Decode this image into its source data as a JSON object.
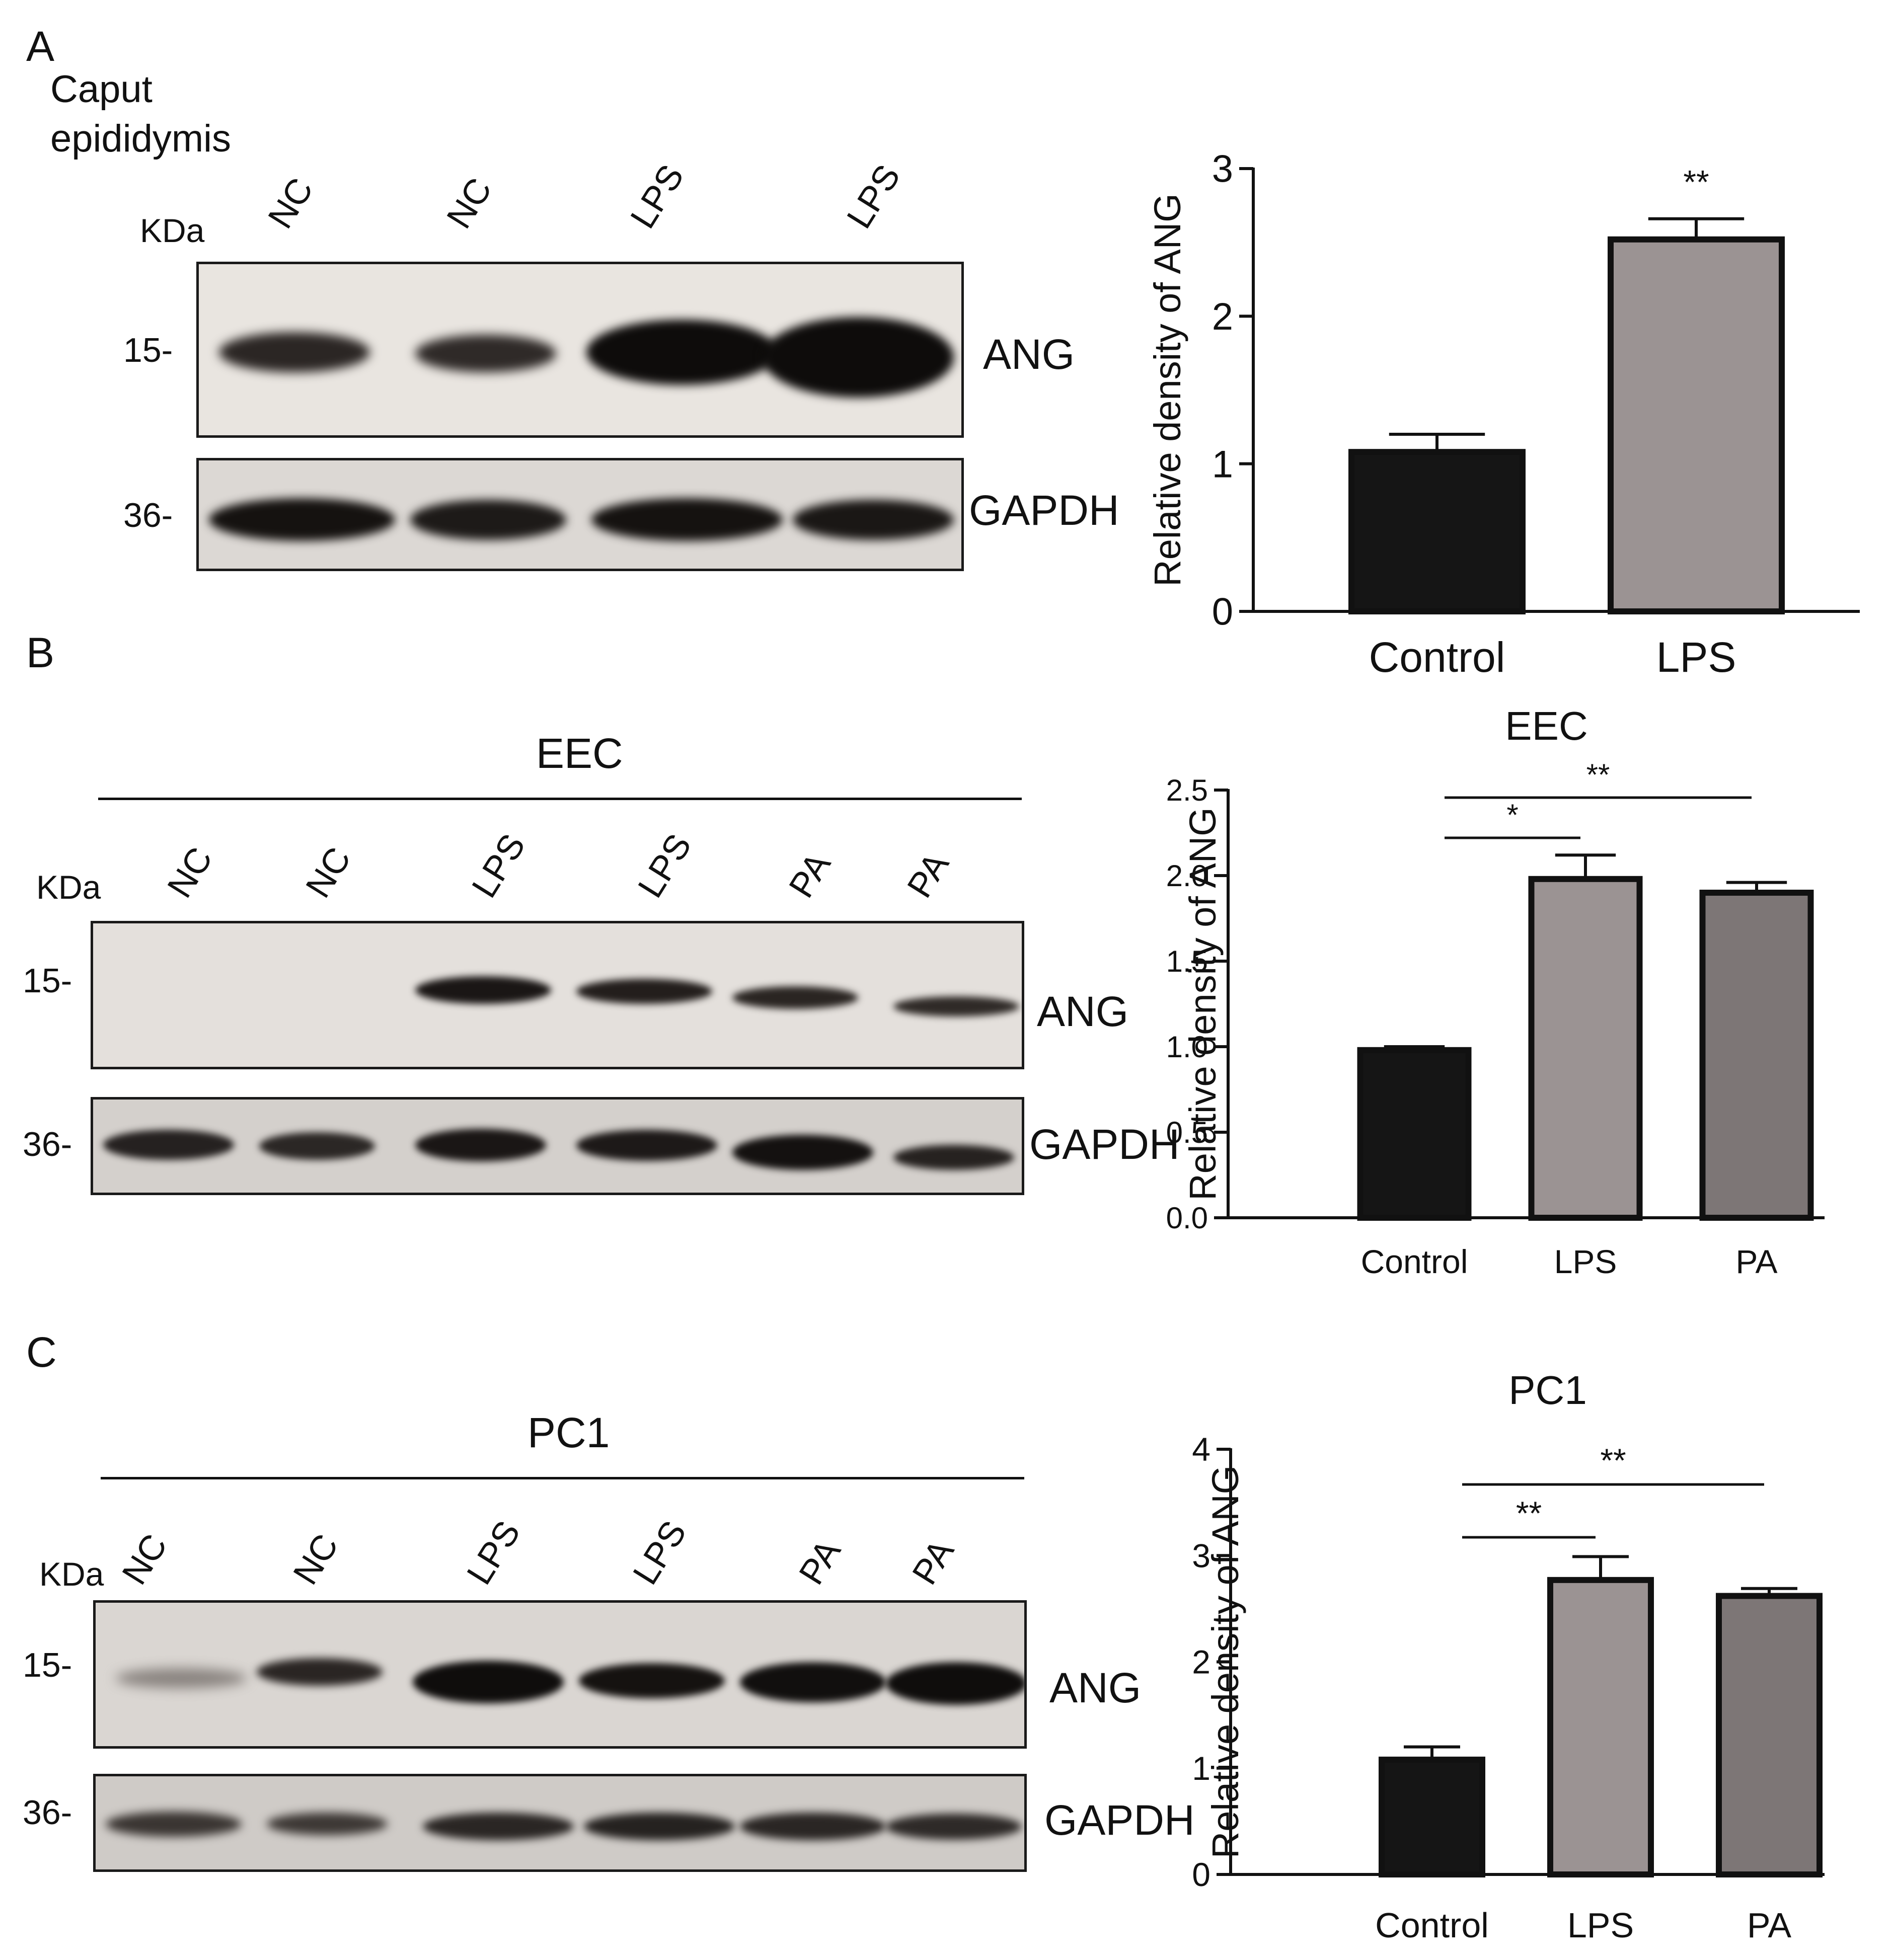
{
  "panels": {
    "A": {
      "letter": "A",
      "tissue_label_line1": "Caput",
      "tissue_label_line2": "epididymis",
      "kda": "KDa",
      "lanes": [
        "NC",
        "NC",
        "LPS",
        "LPS"
      ],
      "markers": {
        "ang": "15-",
        "gapdh": "36-"
      },
      "blot_labels": {
        "ang": "ANG",
        "gapdh": "GAPDH"
      }
    },
    "B": {
      "letter": "B",
      "group_label": "EEC",
      "kda": "KDa",
      "lanes": [
        "NC",
        "NC",
        "LPS",
        "LPS",
        "PA",
        "PA"
      ],
      "markers": {
        "ang": "15-",
        "gapdh": "36-"
      },
      "blot_labels": {
        "ang": "ANG",
        "gapdh": "GAPDH"
      }
    },
    "C": {
      "letter": "C",
      "group_label": "PC1",
      "kda": "KDa",
      "lanes": [
        "NC",
        "NC",
        "LPS",
        "LPS",
        "PA",
        "PA"
      ],
      "markers": {
        "ang": "15-",
        "gapdh": "36-"
      },
      "blot_labels": {
        "ang": "ANG",
        "gapdh": "GAPDH"
      }
    }
  },
  "chart_data": [
    {
      "type": "bar",
      "title": "",
      "ylabel": "Relative density of ANG",
      "categories": [
        "Control",
        "LPS"
      ],
      "values": [
        1.08,
        2.52
      ],
      "errors": [
        0.12,
        0.14
      ],
      "colors": [
        "#151515",
        "#9b9393"
      ],
      "ylim": [
        0,
        3
      ],
      "yticks": [
        "0",
        "1",
        "2",
        "3"
      ],
      "significance": [
        {
          "from": 1,
          "to": 1,
          "label": "**"
        }
      ]
    },
    {
      "type": "bar",
      "title": "EEC",
      "ylabel": "Relative density of ANG",
      "categories": [
        "Control",
        "LPS",
        "PA"
      ],
      "values": [
        0.98,
        1.98,
        1.9
      ],
      "errors": [
        0.02,
        0.14,
        0.06
      ],
      "colors": [
        "#151515",
        "#9b9393",
        "#7d7676"
      ],
      "ylim": [
        0,
        2.5
      ],
      "yticks": [
        "0.0",
        "0.5",
        "1.0",
        "1.5",
        "2.0",
        "2.5"
      ],
      "significance": [
        {
          "from": 0,
          "to": 1,
          "label": "*"
        },
        {
          "from": 0,
          "to": 2,
          "label": "**"
        }
      ]
    },
    {
      "type": "bar",
      "title": "PC1",
      "ylabel": "Relative density of ANG",
      "categories": [
        "Control",
        "LPS",
        "PA"
      ],
      "values": [
        1.08,
        2.77,
        2.62
      ],
      "errors": [
        0.12,
        0.22,
        0.07
      ],
      "colors": [
        "#151515",
        "#9b9393",
        "#7d7676"
      ],
      "ylim": [
        0,
        4
      ],
      "yticks": [
        "0",
        "1",
        "2",
        "3",
        "4"
      ],
      "significance": [
        {
          "from": 0,
          "to": 1,
          "label": "**"
        },
        {
          "from": 0,
          "to": 2,
          "label": "**"
        }
      ]
    }
  ]
}
